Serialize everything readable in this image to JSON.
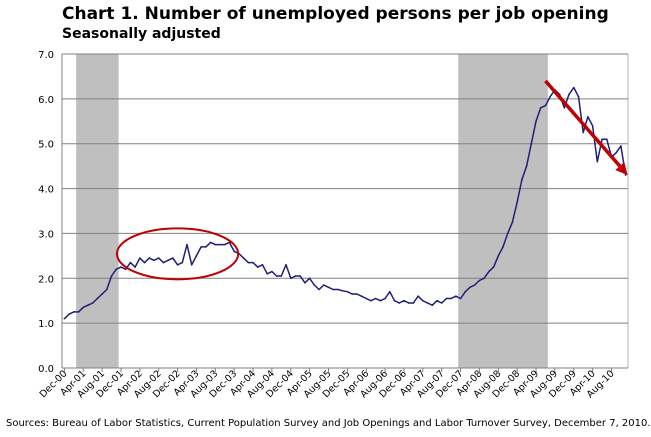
{
  "title": "Chart 1. Number of unemployed persons per job opening",
  "subtitle": "Seasonally adjusted",
  "source": "Sources: Bureau of Labor Statistics, Current Population Survey and Job Openings and Labor Turnover Survey, December 7, 2010.",
  "colors": {
    "line": "#1f1f7a",
    "recession": "#bfbfbf",
    "annotation": "#c00000",
    "grid": "#808080"
  },
  "chart_data": {
    "type": "line",
    "title": "Chart 1. Number of unemployed persons per job opening",
    "subtitle": "Seasonally adjusted",
    "ylim": [
      0,
      7
    ],
    "y_ticks": [
      "0.0",
      "1.0",
      "2.0",
      "3.0",
      "4.0",
      "5.0",
      "6.0",
      "7.0"
    ],
    "grid": true,
    "x_tick_labels": [
      "Dec-00",
      "Apr-01",
      "Aug-01",
      "Dec-01",
      "Apr-02",
      "Aug-02",
      "Dec-02",
      "Apr-03",
      "Aug-03",
      "Dec-03",
      "Apr-04",
      "Aug-04",
      "Dec-04",
      "Apr-05",
      "Aug-05",
      "Dec-05",
      "Apr-06",
      "Aug-06",
      "Dec-06",
      "Apr-07",
      "Aug-07",
      "Dec-07",
      "Apr-08",
      "Aug-08",
      "Dec-08",
      "Apr-09",
      "Aug-09",
      "Dec-09",
      "Apr-10",
      "Aug-10"
    ],
    "recessions": [
      [
        "2001-03",
        "2001-11"
      ],
      [
        "2007-12",
        "2009-06"
      ]
    ],
    "series": [
      {
        "values": [
          [
            "2000-12",
            1.1
          ],
          [
            "2001-01",
            1.2
          ],
          [
            "2001-02",
            1.25
          ],
          [
            "2001-03",
            1.25
          ],
          [
            "2001-04",
            1.35
          ],
          [
            "2001-05",
            1.4
          ],
          [
            "2001-06",
            1.45
          ],
          [
            "2001-07",
            1.55
          ],
          [
            "2001-08",
            1.65
          ],
          [
            "2001-09",
            1.75
          ],
          [
            "2001-10",
            2.05
          ],
          [
            "2001-11",
            2.2
          ],
          [
            "2001-12",
            2.25
          ],
          [
            "2002-01",
            2.2
          ],
          [
            "2002-02",
            2.35
          ],
          [
            "2002-03",
            2.25
          ],
          [
            "2002-04",
            2.45
          ],
          [
            "2002-05",
            2.35
          ],
          [
            "2002-06",
            2.45
          ],
          [
            "2002-07",
            2.4
          ],
          [
            "2002-08",
            2.45
          ],
          [
            "2002-09",
            2.35
          ],
          [
            "2002-10",
            2.4
          ],
          [
            "2002-11",
            2.45
          ],
          [
            "2002-12",
            2.3
          ],
          [
            "2003-01",
            2.35
          ],
          [
            "2003-02",
            2.75
          ],
          [
            "2003-03",
            2.3
          ],
          [
            "2003-04",
            2.5
          ],
          [
            "2003-05",
            2.7
          ],
          [
            "2003-06",
            2.7
          ],
          [
            "2003-07",
            2.8
          ],
          [
            "2003-08",
            2.75
          ],
          [
            "2003-09",
            2.75
          ],
          [
            "2003-10",
            2.75
          ],
          [
            "2003-11",
            2.8
          ],
          [
            "2003-12",
            2.6
          ],
          [
            "2004-01",
            2.55
          ],
          [
            "2004-02",
            2.45
          ],
          [
            "2004-03",
            2.35
          ],
          [
            "2004-04",
            2.35
          ],
          [
            "2004-05",
            2.25
          ],
          [
            "2004-06",
            2.3
          ],
          [
            "2004-07",
            2.1
          ],
          [
            "2004-08",
            2.15
          ],
          [
            "2004-09",
            2.05
          ],
          [
            "2004-10",
            2.05
          ],
          [
            "2004-11",
            2.3
          ],
          [
            "2004-12",
            2.0
          ],
          [
            "2005-01",
            2.05
          ],
          [
            "2005-02",
            2.05
          ],
          [
            "2005-03",
            1.9
          ],
          [
            "2005-04",
            2.0
          ],
          [
            "2005-05",
            1.85
          ],
          [
            "2005-06",
            1.75
          ],
          [
            "2005-07",
            1.85
          ],
          [
            "2005-08",
            1.8
          ],
          [
            "2005-09",
            1.75
          ],
          [
            "2005-10",
            1.75
          ],
          [
            "2005-11",
            1.72
          ],
          [
            "2005-12",
            1.7
          ],
          [
            "2006-01",
            1.65
          ],
          [
            "2006-02",
            1.65
          ],
          [
            "2006-03",
            1.6
          ],
          [
            "2006-04",
            1.55
          ],
          [
            "2006-05",
            1.5
          ],
          [
            "2006-06",
            1.55
          ],
          [
            "2006-07",
            1.5
          ],
          [
            "2006-08",
            1.55
          ],
          [
            "2006-09",
            1.7
          ],
          [
            "2006-10",
            1.5
          ],
          [
            "2006-11",
            1.45
          ],
          [
            "2006-12",
            1.5
          ],
          [
            "2007-01",
            1.45
          ],
          [
            "2007-02",
            1.45
          ],
          [
            "2007-03",
            1.6
          ],
          [
            "2007-04",
            1.5
          ],
          [
            "2007-05",
            1.45
          ],
          [
            "2007-06",
            1.4
          ],
          [
            "2007-07",
            1.5
          ],
          [
            "2007-08",
            1.45
          ],
          [
            "2007-09",
            1.55
          ],
          [
            "2007-10",
            1.55
          ],
          [
            "2007-11",
            1.6
          ],
          [
            "2007-12",
            1.55
          ],
          [
            "2008-01",
            1.7
          ],
          [
            "2008-02",
            1.8
          ],
          [
            "2008-03",
            1.85
          ],
          [
            "2008-04",
            1.95
          ],
          [
            "2008-05",
            2.0
          ],
          [
            "2008-06",
            2.15
          ],
          [
            "2008-07",
            2.25
          ],
          [
            "2008-08",
            2.5
          ],
          [
            "2008-09",
            2.7
          ],
          [
            "2008-10",
            3.0
          ],
          [
            "2008-11",
            3.25
          ],
          [
            "2008-12",
            3.7
          ],
          [
            "2009-01",
            4.2
          ],
          [
            "2009-02",
            4.5
          ],
          [
            "2009-03",
            5.0
          ],
          [
            "2009-04",
            5.5
          ],
          [
            "2009-05",
            5.8
          ],
          [
            "2009-06",
            5.85
          ],
          [
            "2009-07",
            6.05
          ],
          [
            "2009-08",
            6.2
          ],
          [
            "2009-09",
            6.1
          ],
          [
            "2009-10",
            5.8
          ],
          [
            "2009-11",
            6.1
          ],
          [
            "2009-12",
            6.25
          ],
          [
            "2010-01",
            6.05
          ],
          [
            "2010-02",
            5.25
          ],
          [
            "2010-03",
            5.6
          ],
          [
            "2010-04",
            5.4
          ],
          [
            "2010-05",
            4.6
          ],
          [
            "2010-06",
            5.1
          ],
          [
            "2010-07",
            5.1
          ],
          [
            "2010-08",
            4.7
          ],
          [
            "2010-09",
            4.8
          ],
          [
            "2010-10",
            4.95
          ],
          [
            "2010-11",
            4.3
          ]
        ]
      }
    ],
    "annotations": [
      {
        "kind": "ellipse",
        "color": "#c00000",
        "around": [
          "2001-12",
          "2003-12"
        ]
      },
      {
        "kind": "arrow",
        "color": "#c00000",
        "from": [
          "2009-06",
          6.4
        ],
        "to": [
          "2010-11",
          4.3
        ]
      }
    ]
  }
}
